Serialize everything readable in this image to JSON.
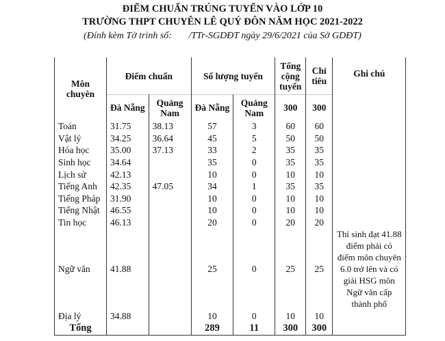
{
  "title_line1": "ĐIỂM CHUẨN TRÚNG TUYỂN VÀO LỚP 10",
  "title_line2": "TRƯỜNG THPT CHUYÊN LÊ QUÝ ĐÔN NĂM HỌC 2021-2022",
  "subtitle": "(Đính kèm Tờ trình số:       /TTr-SGDĐT ngày 29/6/2021 của Sở GDĐT)",
  "headers": {
    "subject": "Môn chuyên",
    "score": "Điểm chuẩn",
    "count": "Số lượng tuyển",
    "total": "Tổng cộng tuyển",
    "quota": "Chỉ tiêu",
    "note": "Ghi chú",
    "danang": "Đà Nẵng",
    "quangnam": "Quảng Nam",
    "total_value": "300",
    "quota_value": "300"
  },
  "rows": [
    {
      "subject": "Toán",
      "dn_score": "31.75",
      "qn_score": "38.13",
      "dn_count": "57",
      "qn_count": "3",
      "total": "60",
      "quota": "60"
    },
    {
      "subject": "Vật lý",
      "dn_score": "34.25",
      "qn_score": "36.64",
      "dn_count": "45",
      "qn_count": "5",
      "total": "50",
      "quota": "50"
    },
    {
      "subject": "Hóa học",
      "dn_score": "35.00",
      "qn_score": "37.13",
      "dn_count": "33",
      "qn_count": "2",
      "total": "35",
      "quota": "35"
    },
    {
      "subject": "Sinh học",
      "dn_score": "34.64",
      "qn_score": "",
      "dn_count": "35",
      "qn_count": "0",
      "total": "35",
      "quota": "35"
    },
    {
      "subject": "Lịch sử",
      "dn_score": "42.13",
      "qn_score": "",
      "dn_count": "10",
      "qn_count": "0",
      "total": "10",
      "quota": "10"
    },
    {
      "subject": "Tiếng Anh",
      "dn_score": "42.35",
      "qn_score": "47.05",
      "dn_count": "34",
      "qn_count": "1",
      "total": "35",
      "quota": "35"
    },
    {
      "subject": "Tiếng Pháp",
      "dn_score": "31.90",
      "qn_score": "",
      "dn_count": "10",
      "qn_count": "0",
      "total": "10",
      "quota": "10"
    },
    {
      "subject": "Tiếng Nhật",
      "dn_score": "46.55",
      "qn_score": "",
      "dn_count": "10",
      "qn_count": "0",
      "total": "10",
      "quota": "10"
    },
    {
      "subject": "Tin học",
      "dn_score": "46.13",
      "qn_score": "",
      "dn_count": "20",
      "qn_count": "0",
      "total": "20",
      "quota": "20"
    },
    {
      "subject": "Ngữ văn",
      "dn_score": "41.88",
      "qn_score": "",
      "dn_count": "25",
      "qn_count": "0",
      "total": "25",
      "quota": "25",
      "note": "Thí sinh đạt 41.88 điểm phải có điểm môn chuyên 6.0 trở lên và có giải HSG môn Ngữ văn cấp thành phố"
    },
    {
      "subject": "Địa lý",
      "dn_score": "34.88",
      "qn_score": "",
      "dn_count": "10",
      "qn_count": "0",
      "total": "10",
      "quota": "10"
    }
  ],
  "totals": {
    "label": "Tổng",
    "dn_count": "289",
    "qn_count": "11",
    "total": "300",
    "quota": "300"
  }
}
